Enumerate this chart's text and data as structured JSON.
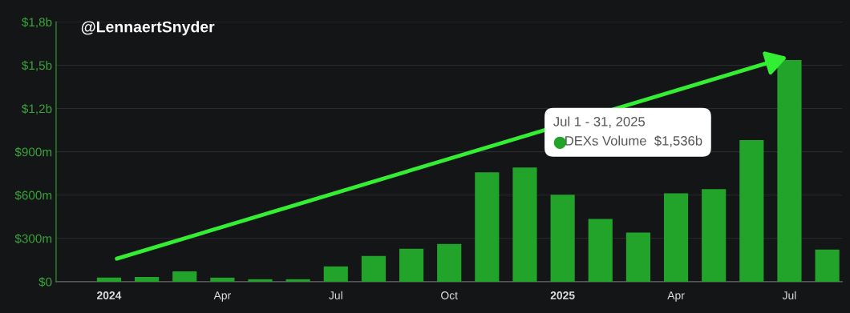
{
  "chart_data": {
    "type": "bar",
    "categories": [
      "2024",
      null,
      null,
      "Apr",
      null,
      null,
      "Jul",
      null,
      null,
      "Oct",
      null,
      null,
      "2025",
      null,
      null,
      "Apr",
      null,
      null,
      "Jul",
      null
    ],
    "series": [
      {
        "color": "#22a32a",
        "values": [
          28000000,
          33000000,
          72000000,
          28000000,
          17000000,
          17000000,
          106000000,
          178000000,
          228000000,
          262000000,
          758000000,
          791000000,
          602000000,
          435000000,
          340000000,
          613000000,
          641000000,
          981000000,
          1536000000,
          223000000
        ]
      }
    ],
    "ylim": [
      0,
      1800000000
    ],
    "yticks": [
      {
        "value": 0,
        "label": "$0"
      },
      {
        "value": 300000000,
        "label": "$300m"
      },
      {
        "value": 600000000,
        "label": "$600m"
      },
      {
        "value": 900000000,
        "label": "$900m"
      },
      {
        "value": 1200000000,
        "label": "$1,2b"
      },
      {
        "value": 1500000000,
        "label": "$1,5b"
      },
      {
        "value": 1800000000,
        "label": "$1,8b"
      }
    ],
    "grid": "y",
    "annotations": [
      "@LennaertSnyder",
      "Jul 1 - 31, 2025",
      "DEXs Volume  $1,536b"
    ]
  }
}
